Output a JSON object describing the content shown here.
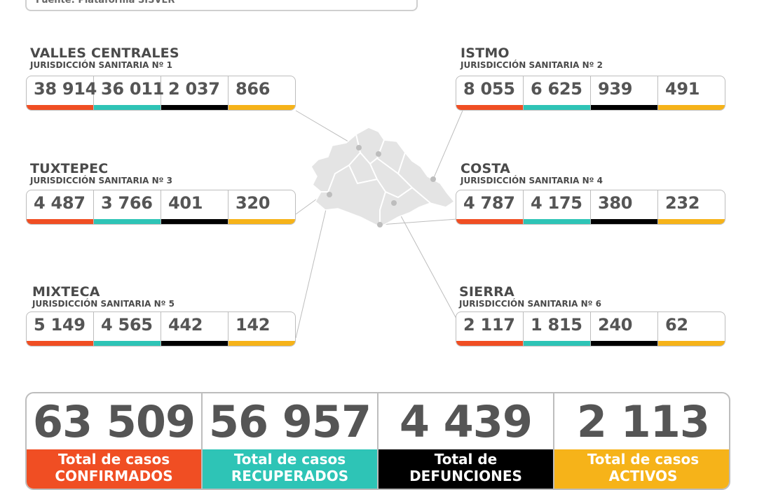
{
  "source": "Fuente: Plataforma SISVER",
  "colors": {
    "confirmados": "#f04e23",
    "recuperados": "#2ec4b6",
    "defunciones": "#000000",
    "activos": "#f6b319"
  },
  "regions": {
    "valles": {
      "name": "VALLES CENTRALES",
      "juris": "JURISDICCIÓN SANITARIA Nº 1",
      "values": [
        "38 914",
        "36 011",
        "2 037",
        "866"
      ]
    },
    "istmo": {
      "name": "ISTMO",
      "juris": "JURISDICCIÓN SANITARIA Nº 2",
      "values": [
        "8 055",
        "6 625",
        "939",
        "491"
      ]
    },
    "tuxtepec": {
      "name": "TUXTEPEC",
      "juris": "JURISDICCIÓN SANITARIA Nº 3",
      "values": [
        "4 487",
        "3 766",
        "401",
        "320"
      ]
    },
    "costa": {
      "name": "COSTA",
      "juris": "JURISDICCIÓN SANITARIA Nº 4",
      "values": [
        "4 787",
        "4 175",
        "380",
        "232"
      ]
    },
    "mixteca": {
      "name": "MIXTECA",
      "juris": "JURISDICCIÓN SANITARIA Nº 5",
      "values": [
        "5 149",
        "4 565",
        "442",
        "142"
      ]
    },
    "sierra": {
      "name": "SIERRA",
      "juris": "JURISDICCIÓN SANITARIA Nº 6",
      "values": [
        "2 117",
        "1 815",
        "240",
        "62"
      ]
    }
  },
  "totals": [
    {
      "value": "63 509",
      "label": "Total de casos CONFIRMADOS"
    },
    {
      "value": "56 957",
      "label": "Total de casos RECUPERADOS"
    },
    {
      "value": "4 439",
      "label": "Total de DEFUNCIONES"
    },
    {
      "value": "2 113",
      "label": "Total de casos ACTIVOS"
    }
  ]
}
